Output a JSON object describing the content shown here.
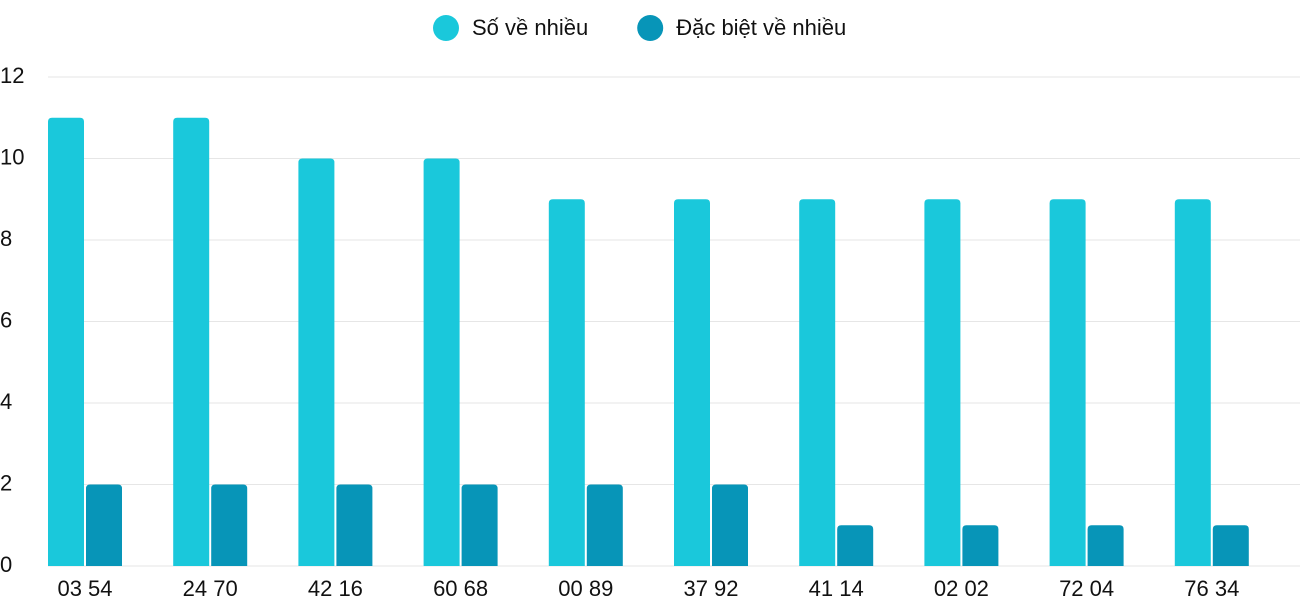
{
  "chart_data": {
    "type": "bar",
    "categories": [
      "03 54",
      "24 70",
      "42 16",
      "60 68",
      "00 89",
      "37 92",
      "41 14",
      "02 02",
      "72 04",
      "76 34"
    ],
    "series": [
      {
        "name": "Số về nhiều",
        "color": "#1ac8db",
        "values": [
          11,
          11,
          10,
          10,
          9,
          9,
          9,
          9,
          9,
          9
        ]
      },
      {
        "name": "Đặc biệt về nhiều",
        "color": "#0795b8",
        "values": [
          2,
          2,
          2,
          2,
          2,
          2,
          1,
          1,
          1,
          1
        ]
      }
    ],
    "ylim": [
      0,
      12
    ],
    "yticks": [
      0,
      2,
      4,
      6,
      8,
      10,
      12
    ],
    "grid": true,
    "legend": "top"
  }
}
